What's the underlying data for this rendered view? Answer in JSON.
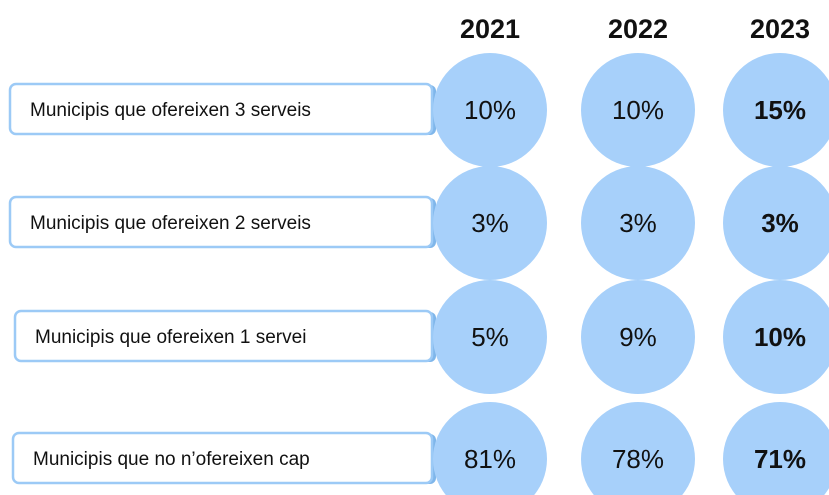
{
  "table": {
    "headers": [
      "2021",
      "2022",
      "2023"
    ],
    "rows": [
      {
        "label": "Municipis que ofereixen 3 serveis",
        "values": [
          "10%",
          "10%",
          "15%"
        ]
      },
      {
        "label": "Municipis que ofereixen 2 serveis",
        "values": [
          "3%",
          "3%",
          "3%"
        ]
      },
      {
        "label": "Municipis que ofereixen 1 servei",
        "values": [
          "5%",
          "9%",
          "10%"
        ]
      },
      {
        "label": "Municipis que no n’ofereixen cap",
        "values": [
          "81%",
          "78%",
          "71%"
        ]
      }
    ]
  }
}
